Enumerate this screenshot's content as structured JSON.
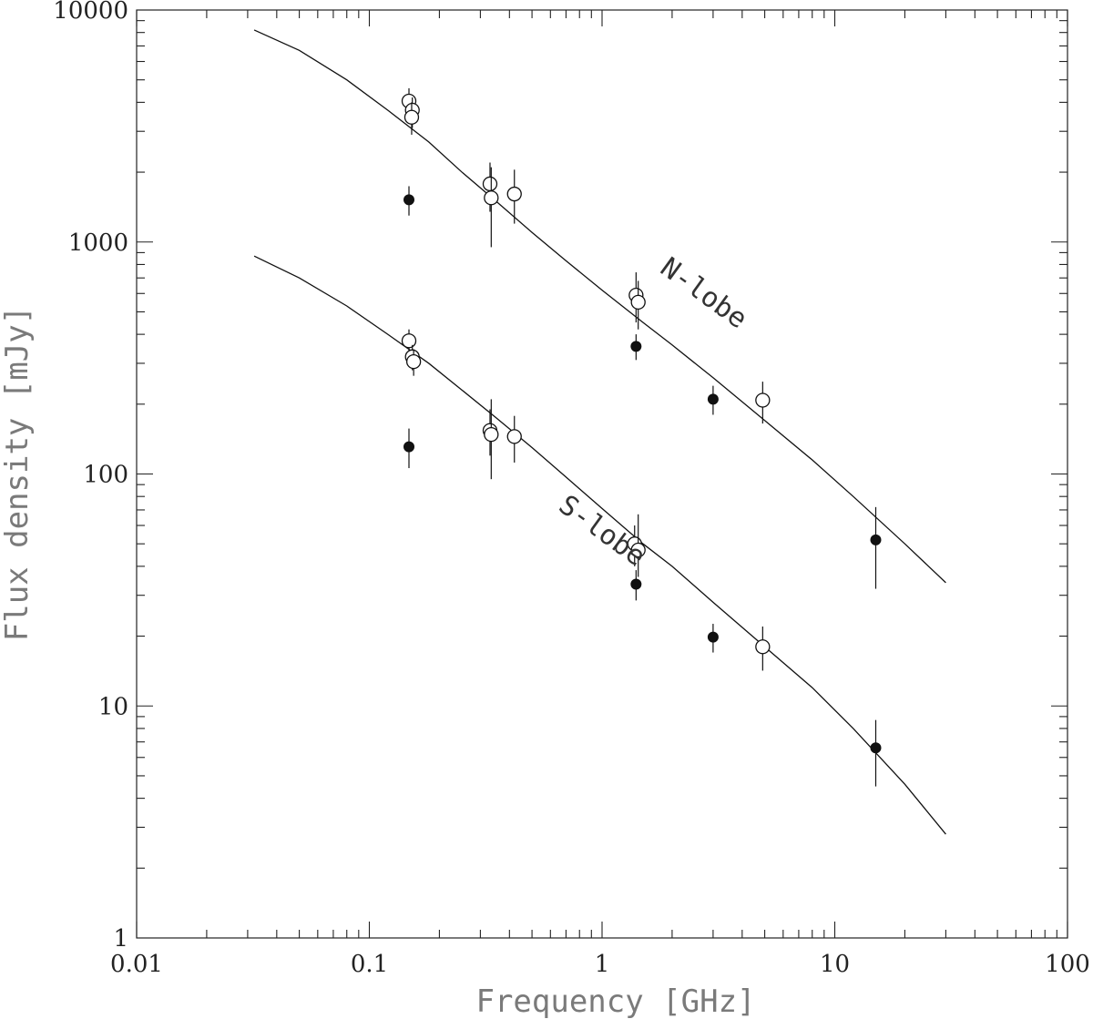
{
  "chart_data": {
    "type": "scatter",
    "title": "",
    "xlabel": "Frequency [GHz]",
    "ylabel": "Flux density [mJy]",
    "xscale": "log",
    "yscale": "log",
    "xlim": [
      0.01,
      100
    ],
    "ylim": [
      1,
      10000
    ],
    "x_ticks": [
      0.01,
      0.1,
      1,
      10,
      100
    ],
    "x_tick_labels": [
      "0.01",
      "0.1",
      "1",
      "10",
      "100"
    ],
    "y_ticks": [
      1,
      10,
      100,
      1000,
      10000
    ],
    "y_tick_labels": [
      "1",
      "10",
      "100",
      "1000",
      "10000"
    ],
    "grid": false,
    "legend": "none",
    "annotations": [
      {
        "text": "N-lobe",
        "x": 2.6,
        "y": 560,
        "rotation": 36
      },
      {
        "text": "S-lobe",
        "x": 0.95,
        "y": 53,
        "rotation": 36
      }
    ],
    "fit_curves": [
      {
        "label_ref": "N-lobe",
        "x": [
          0.032,
          0.05,
          0.08,
          0.12,
          0.18,
          0.25,
          0.35,
          0.5,
          0.7,
          1,
          1.5,
          2,
          3,
          5,
          8,
          12,
          20,
          30
        ],
        "y": [
          8200,
          6700,
          5000,
          3700,
          2700,
          2000,
          1500,
          1100,
          830,
          620,
          450,
          360,
          260,
          170,
          115,
          80,
          50,
          34
        ]
      },
      {
        "label_ref": "S-lobe",
        "x": [
          0.032,
          0.05,
          0.08,
          0.12,
          0.18,
          0.25,
          0.35,
          0.5,
          0.7,
          1,
          1.5,
          2,
          3,
          5,
          8,
          12,
          20,
          30
        ],
        "y": [
          870,
          700,
          530,
          400,
          300,
          230,
          175,
          130,
          97,
          71,
          50,
          40,
          28,
          18,
          12,
          8.0,
          4.6,
          2.8
        ]
      }
    ],
    "points": [
      {
        "x": 0.148,
        "y": 4050,
        "ylo": 3500,
        "yhi": 4600,
        "marker": "open"
      },
      {
        "x": 0.153,
        "y": 3700,
        "ylo": 3100,
        "yhi": 4200,
        "marker": "open"
      },
      {
        "x": 0.152,
        "y": 3450,
        "ylo": 2900,
        "yhi": 4000,
        "marker": "open"
      },
      {
        "x": 0.148,
        "y": 1520,
        "ylo": 1300,
        "yhi": 1740,
        "marker": "filled"
      },
      {
        "x": 0.33,
        "y": 1780,
        "ylo": 1350,
        "yhi": 2200,
        "marker": "open"
      },
      {
        "x": 0.334,
        "y": 1550,
        "ylo": 950,
        "yhi": 2100,
        "marker": "open"
      },
      {
        "x": 0.42,
        "y": 1610,
        "ylo": 1200,
        "yhi": 2050,
        "marker": "open"
      },
      {
        "x": 1.4,
        "y": 590,
        "ylo": 450,
        "yhi": 740,
        "marker": "open"
      },
      {
        "x": 1.43,
        "y": 550,
        "ylo": 420,
        "yhi": 680,
        "marker": "open"
      },
      {
        "x": 1.4,
        "y": 355,
        "ylo": 310,
        "yhi": 400,
        "marker": "filled"
      },
      {
        "x": 3.0,
        "y": 210,
        "ylo": 180,
        "yhi": 240,
        "marker": "filled"
      },
      {
        "x": 4.9,
        "y": 208,
        "ylo": 165,
        "yhi": 250,
        "marker": "open"
      },
      {
        "x": 15.0,
        "y": 52,
        "ylo": 32,
        "yhi": 72,
        "marker": "filled"
      },
      {
        "x": 0.148,
        "y": 375,
        "ylo": 330,
        "yhi": 420,
        "marker": "open"
      },
      {
        "x": 0.153,
        "y": 320,
        "ylo": 280,
        "yhi": 360,
        "marker": "open"
      },
      {
        "x": 0.155,
        "y": 305,
        "ylo": 265,
        "yhi": 345,
        "marker": "open"
      },
      {
        "x": 0.148,
        "y": 131,
        "ylo": 106,
        "yhi": 157,
        "marker": "filled"
      },
      {
        "x": 0.33,
        "y": 154,
        "ylo": 120,
        "yhi": 190,
        "marker": "open"
      },
      {
        "x": 0.334,
        "y": 148,
        "ylo": 95,
        "yhi": 210,
        "marker": "open"
      },
      {
        "x": 0.42,
        "y": 145,
        "ylo": 112,
        "yhi": 178,
        "marker": "open"
      },
      {
        "x": 1.38,
        "y": 50,
        "ylo": 40,
        "yhi": 60,
        "marker": "open"
      },
      {
        "x": 1.43,
        "y": 47,
        "ylo": 36,
        "yhi": 67,
        "marker": "open"
      },
      {
        "x": 1.4,
        "y": 33.5,
        "ylo": 28.5,
        "yhi": 38.5,
        "marker": "filled"
      },
      {
        "x": 3.0,
        "y": 19.8,
        "ylo": 17,
        "yhi": 22.6,
        "marker": "filled"
      },
      {
        "x": 4.9,
        "y": 18,
        "ylo": 14.2,
        "yhi": 22,
        "marker": "open"
      },
      {
        "x": 15.0,
        "y": 6.6,
        "ylo": 4.5,
        "yhi": 8.7,
        "marker": "filled"
      }
    ]
  }
}
